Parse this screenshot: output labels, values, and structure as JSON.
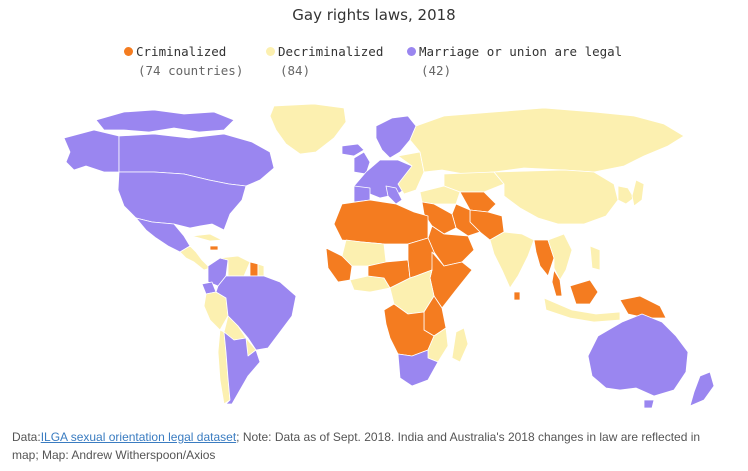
{
  "title": "Gay rights laws, 2018",
  "colors": {
    "criminalized": "#f47c20",
    "decriminalized": "#fcf0b0",
    "legal": "#9a86f0",
    "border": "#ffffff"
  },
  "legend": {
    "criminalized": {
      "label": "Criminalized",
      "count": "(74 countries)"
    },
    "decriminalized": {
      "label": "Decriminalized",
      "count": "(84)"
    },
    "legal": {
      "label": "Marriage or union are legal",
      "count": "(42)"
    }
  },
  "footer": {
    "prefix": "Data:",
    "link": "ILGA sexual orientation legal dataset",
    "text": "; Note: Data as of Sept. 2018. India and Australia's 2018 changes in law are reflected in map; Map: Andrew Witherspoon/Axios"
  }
}
